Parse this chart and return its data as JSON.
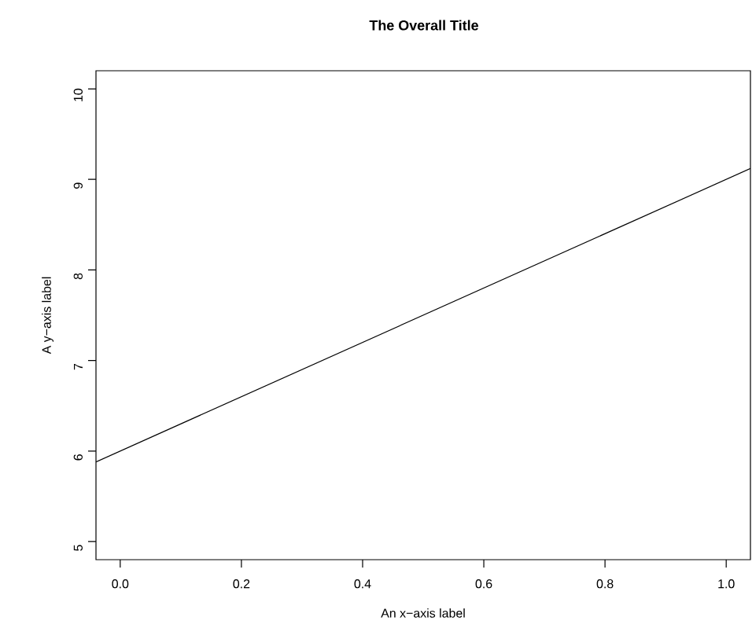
{
  "chart_data": {
    "type": "line",
    "title": "The Overall Title",
    "xlabel": "An x−axis label",
    "ylabel": "A y−axis label",
    "x": [
      -0.04,
      1.04
    ],
    "series": [
      {
        "color": "#000000",
        "values": [
          5.88,
          9.12
        ]
      }
    ],
    "xlim": [
      -0.04,
      1.04
    ],
    "ylim": [
      4.8,
      10.2
    ],
    "xticks": [
      {
        "value": 0,
        "label": "0.0"
      },
      {
        "value": 0.2,
        "label": "0.2"
      },
      {
        "value": 0.4,
        "label": "0.4"
      },
      {
        "value": 0.6,
        "label": "0.6"
      },
      {
        "value": 0.8,
        "label": "0.8"
      },
      {
        "value": 1,
        "label": "1.0"
      }
    ],
    "yticks": [
      5,
      6,
      7,
      8,
      9,
      10
    ],
    "grid": false,
    "marker": "none",
    "line_style": "solid"
  }
}
